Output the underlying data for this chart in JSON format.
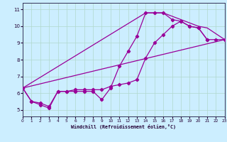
{
  "bg_color": "#cceeff",
  "line_color": "#990099",
  "grid_color": "#b0d8cc",
  "xlabel": "Windchill (Refroidissement éolien,°C)",
  "xlim": [
    0,
    23
  ],
  "ylim": [
    4.6,
    11.4
  ],
  "xticks": [
    0,
    1,
    2,
    3,
    4,
    5,
    6,
    7,
    8,
    9,
    10,
    11,
    12,
    13,
    14,
    15,
    16,
    17,
    18,
    19,
    20,
    21,
    22,
    23
  ],
  "yticks": [
    5,
    6,
    7,
    8,
    9,
    10,
    11
  ],
  "linewidth": 0.9,
  "markersize": 2.2,
  "line1_x": [
    0,
    1,
    2,
    3,
    4,
    5,
    6,
    7,
    8,
    9,
    10,
    11,
    12,
    13,
    14,
    15,
    16,
    17,
    18,
    19,
    20,
    21
  ],
  "line1_y": [
    6.3,
    5.5,
    5.3,
    5.1,
    6.1,
    6.1,
    6.1,
    6.1,
    6.1,
    5.6,
    6.3,
    7.6,
    8.5,
    9.4,
    10.8,
    10.8,
    10.8,
    10.4,
    10.3,
    10.0,
    9.9,
    9.2
  ],
  "line2_x": [
    0,
    1,
    2,
    3,
    4,
    5,
    6,
    7,
    8,
    9,
    10,
    11,
    12,
    13,
    14,
    15,
    16,
    17,
    18,
    19,
    20,
    21,
    22,
    23
  ],
  "line2_y": [
    6.3,
    5.5,
    5.4,
    5.2,
    6.1,
    6.1,
    6.2,
    6.2,
    6.2,
    6.2,
    6.4,
    6.5,
    6.6,
    6.8,
    8.1,
    9.0,
    9.5,
    10.0,
    10.3,
    10.0,
    9.9,
    9.2,
    9.2,
    9.2
  ],
  "line3_x": [
    0,
    23
  ],
  "line3_y": [
    6.3,
    9.2
  ],
  "line4_x": [
    0,
    14,
    16,
    20,
    21,
    23
  ],
  "line4_y": [
    6.3,
    10.8,
    10.8,
    10.0,
    9.9,
    9.2
  ]
}
